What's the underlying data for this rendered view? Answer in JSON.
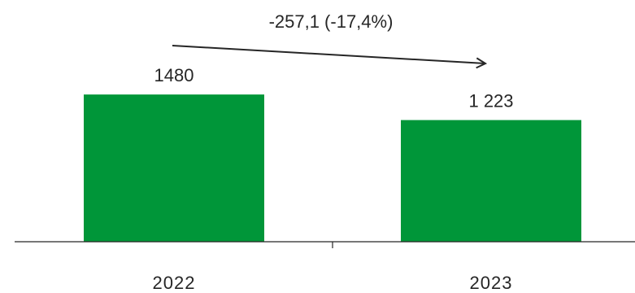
{
  "chart_data": {
    "type": "bar",
    "categories": [
      "2022",
      "2023"
    ],
    "values": [
      1480,
      1223
    ],
    "value_labels": [
      "1480",
      "1 223"
    ],
    "annotation": "-257,1 (-17,4%)",
    "title": "",
    "xlabel": "",
    "ylabel": "",
    "ylim": [
      0,
      1800
    ],
    "grid": false,
    "legend": "none",
    "colors": {
      "bar": "#009639",
      "axis": "#262626",
      "text": "#262626",
      "arrow": "#262626"
    }
  }
}
